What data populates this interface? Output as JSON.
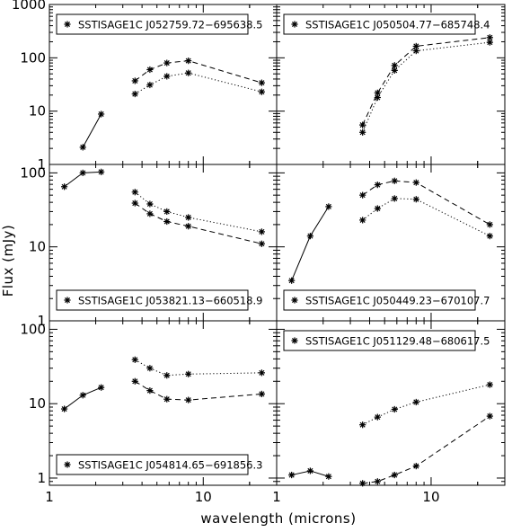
{
  "chart_data": {
    "type": "scatter",
    "xlabel": "wavelength (microns)",
    "ylabel": "Flux (mJy)",
    "xscale": "log",
    "yscale": "log",
    "xlim": [
      1,
      30
    ],
    "x_ticks": [
      "1",
      "10"
    ],
    "panels": [
      {
        "label": "SSTISAGE1C  J052759.72−695638.5",
        "legend_position": "top-left",
        "ylim": [
          1,
          1000
        ],
        "y_ticks": [
          "1",
          "10",
          "100",
          "1000"
        ],
        "series": [
          {
            "style": "solid",
            "x": [
              1.65,
              2.17
            ],
            "y": [
              2.1,
              8.8
            ]
          },
          {
            "style": "dashed",
            "x": [
              3.6,
              4.5,
              5.8,
              8.0,
              24
            ],
            "y": [
              37,
              60,
              80,
              88,
              34
            ]
          },
          {
            "style": "dotted",
            "x": [
              3.6,
              4.5,
              5.8,
              8.0,
              24
            ],
            "y": [
              21,
              31,
              45,
              52,
              23
            ]
          }
        ]
      },
      {
        "label": "SSTISAGE1C  J050504.77−685748.4",
        "legend_position": "top-left",
        "ylim": [
          1,
          1000
        ],
        "y_ticks": [
          "1",
          "10",
          "100",
          "1000"
        ],
        "series": [
          {
            "style": "dashed",
            "x": [
              3.6,
              4.5,
              5.8,
              8.0,
              24
            ],
            "y": [
              5.5,
              22,
              72,
              165,
              240
            ]
          },
          {
            "style": "dotted",
            "x": [
              3.6,
              4.5,
              5.8,
              8.0,
              24
            ],
            "y": [
              4.0,
              18,
              58,
              135,
              195
            ]
          }
        ]
      },
      {
        "label": "SSTISAGE1C  J053821.13−660518.9",
        "legend_position": "bottom-left",
        "ylim": [
          1,
          130
        ],
        "y_ticks": [
          "1",
          "10",
          "100"
        ],
        "series": [
          {
            "style": "solid",
            "x": [
              1.25,
              1.65,
              2.17
            ],
            "y": [
              65,
              100,
              103
            ]
          },
          {
            "style": "dotted",
            "x": [
              3.6,
              4.5,
              5.8,
              8.0,
              24
            ],
            "y": [
              55,
              38,
              30,
              25,
              16
            ]
          },
          {
            "style": "dashed",
            "x": [
              3.6,
              4.5,
              5.8,
              8.0,
              24
            ],
            "y": [
              39,
              28,
              22,
              19,
              11
            ]
          }
        ]
      },
      {
        "label": "SSTISAGE1C  J050449.23−670107.7",
        "legend_position": "bottom-left",
        "ylim": [
          1,
          130
        ],
        "y_ticks": [
          "1",
          "10",
          "100"
        ],
        "series": [
          {
            "style": "solid",
            "x": [
              1.25,
              1.65,
              2.17
            ],
            "y": [
              3.5,
              14,
              35
            ]
          },
          {
            "style": "dashed",
            "x": [
              3.6,
              4.5,
              5.8,
              8.0,
              24
            ],
            "y": [
              50,
              69,
              78,
              74,
              20
            ]
          },
          {
            "style": "dotted",
            "x": [
              3.6,
              4.5,
              5.8,
              8.0,
              24
            ],
            "y": [
              23,
              33,
              45,
              44,
              14
            ]
          }
        ]
      },
      {
        "label": "SSTISAGE1C  J054814.65−691856.3",
        "legend_position": "bottom-left",
        "ylim": [
          0.8,
          130
        ],
        "y_ticks": [
          "1",
          "10",
          "100"
        ],
        "series": [
          {
            "style": "solid",
            "x": [
              1.25,
              1.65,
              2.17
            ],
            "y": [
              8.5,
              13,
              16.5
            ]
          },
          {
            "style": "dotted",
            "x": [
              3.6,
              4.5,
              5.8,
              8.0,
              24
            ],
            "y": [
              39,
              30,
              24,
              25,
              26
            ]
          },
          {
            "style": "dashed",
            "x": [
              3.6,
              4.5,
              5.8,
              8.0,
              24
            ],
            "y": [
              20,
              15,
              11.5,
              11.2,
              13.5
            ]
          }
        ]
      },
      {
        "label": "SSTISAGE1C  J051129.48−680617.5",
        "legend_position": "top-left",
        "ylim": [
          0.8,
          130
        ],
        "y_ticks": [
          "1",
          "10",
          "100"
        ],
        "series": [
          {
            "style": "solid",
            "x": [
              1.25,
              1.65,
              2.17
            ],
            "y": [
              1.1,
              1.25,
              1.05
            ]
          },
          {
            "style": "dotted",
            "x": [
              3.6,
              4.5,
              5.8,
              8.0,
              24
            ],
            "y": [
              5.2,
              6.6,
              8.4,
              10.5,
              18
            ]
          },
          {
            "style": "dashed",
            "x": [
              3.6,
              4.5,
              5.8,
              8.0,
              24
            ],
            "y": [
              0.85,
              0.9,
              1.1,
              1.45,
              6.8
            ]
          }
        ]
      }
    ]
  }
}
